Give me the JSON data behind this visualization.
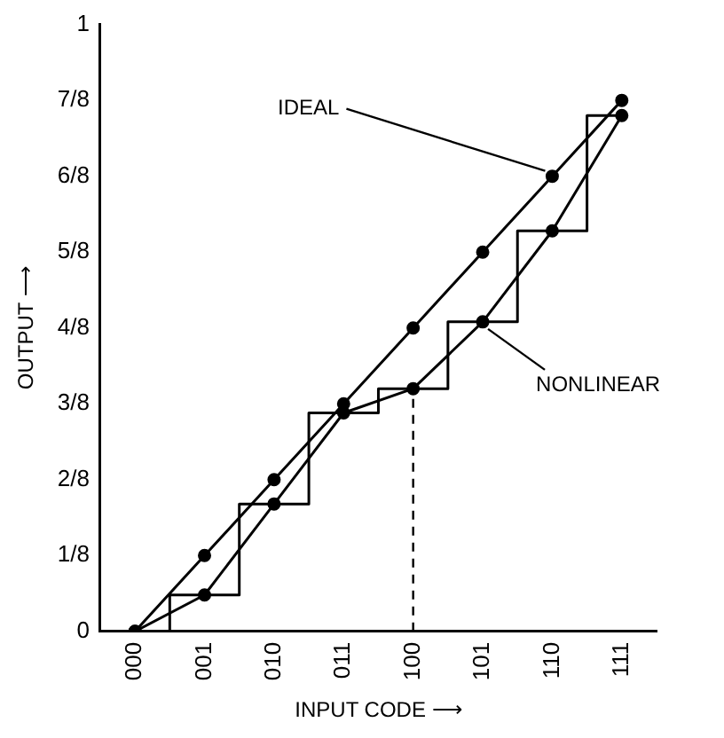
{
  "chart_data": {
    "type": "line",
    "xlabel": "INPUT CODE ⟶",
    "ylabel": "OUTPUT ⟶",
    "categories": [
      "000",
      "001",
      "010",
      "011",
      "100",
      "101",
      "110",
      "111"
    ],
    "series": [
      {
        "color": "#000000",
        "marker": "circle",
        "values": [
          0,
          0.125,
          0.25,
          0.375,
          0.5,
          0.625,
          0.75,
          0.875
        ]
      },
      {
        "color": "#000000",
        "marker": "circle",
        "values": [
          0,
          0.06,
          0.21,
          0.36,
          0.4,
          0.51,
          0.66,
          0.85
        ]
      },
      {
        "type": "step",
        "color": "#000000",
        "marker": "none",
        "values": [
          0,
          0.06,
          0.21,
          0.36,
          0.4,
          0.51,
          0.66,
          0.85
        ]
      }
    ],
    "ylim": [
      0,
      1
    ],
    "yticks": [
      0,
      {
        "value": 0.125,
        "label": "1/8"
      },
      {
        "value": 0.25,
        "label": "2/8"
      },
      {
        "value": 0.375,
        "label": "3/8"
      },
      {
        "value": 0.5,
        "label": "4/8"
      },
      {
        "value": 0.625,
        "label": "5/8"
      },
      {
        "value": 0.75,
        "label": "6/8"
      },
      {
        "value": 0.875,
        "label": "7/8"
      },
      1
    ],
    "ref_lines": [
      {
        "axis": "x",
        "value": "100",
        "line_style": "dashed"
      }
    ],
    "annotations": [
      {
        "text": "IDEAL",
        "x": "110",
        "y": 0.75
      },
      {
        "text": "NONLINEAR",
        "x": "101",
        "y": 0.51
      }
    ],
    "grid": false,
    "legend": false
  }
}
